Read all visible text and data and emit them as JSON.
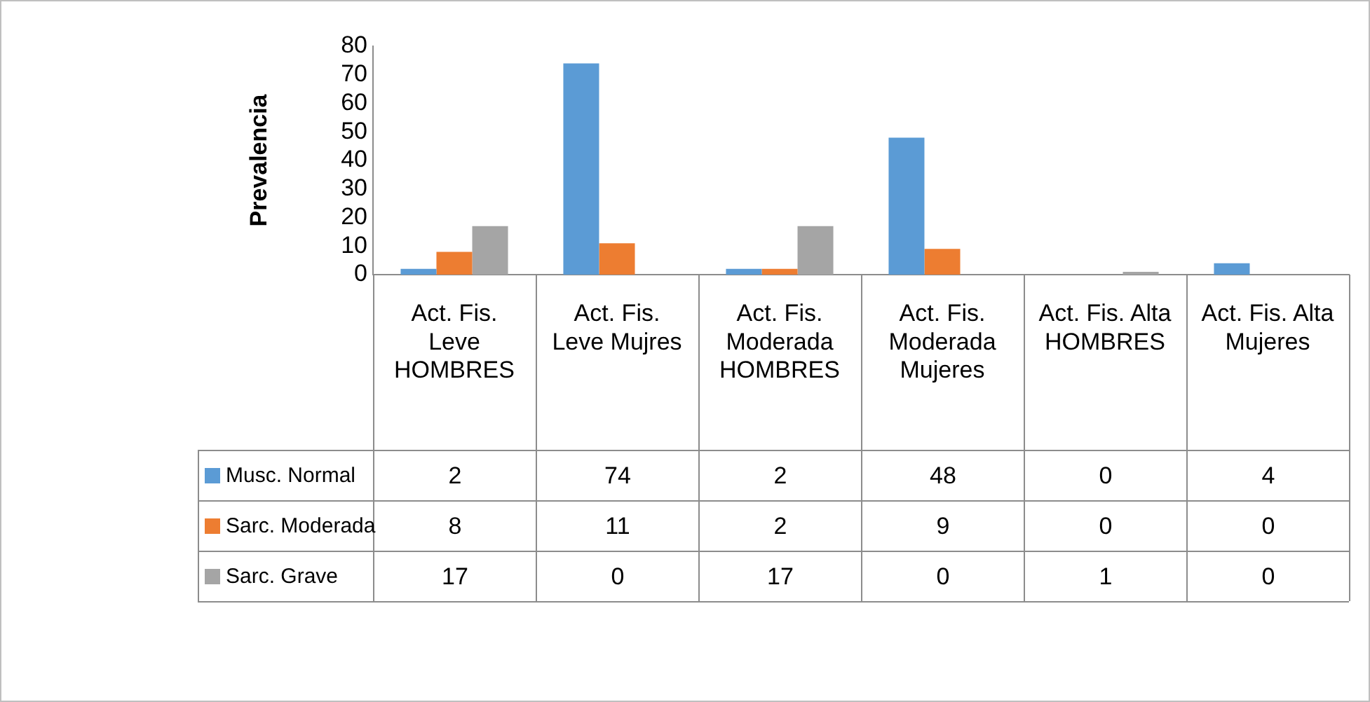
{
  "chart_data": {
    "type": "bar",
    "ylabel": "Prevalencia",
    "categories": [
      "Act. Fis. Leve HOMBRES",
      "Act. Fis. Leve Mujres",
      "Act. Fis. Moderada HOMBRES",
      "Act. Fis. Moderada Mujeres",
      "Act. Fis. Alta HOMBRES",
      "Act. Fis. Alta Mujeres"
    ],
    "series": [
      {
        "name": "Musc. Normal",
        "color": "#5b9bd5",
        "values": [
          2,
          74,
          2,
          48,
          0,
          4
        ]
      },
      {
        "name": "Sarc. Moderada",
        "color": "#ed7d31",
        "values": [
          8,
          11,
          2,
          9,
          0,
          0
        ]
      },
      {
        "name": "Sarc. Grave",
        "color": "#a5a5a5",
        "values": [
          17,
          0,
          17,
          0,
          1,
          0
        ]
      }
    ],
    "ylim": [
      0,
      80
    ],
    "yticks": [
      0,
      10,
      20,
      30,
      40,
      50,
      60,
      70,
      80
    ],
    "legend": "bottom",
    "data_labels": true
  }
}
